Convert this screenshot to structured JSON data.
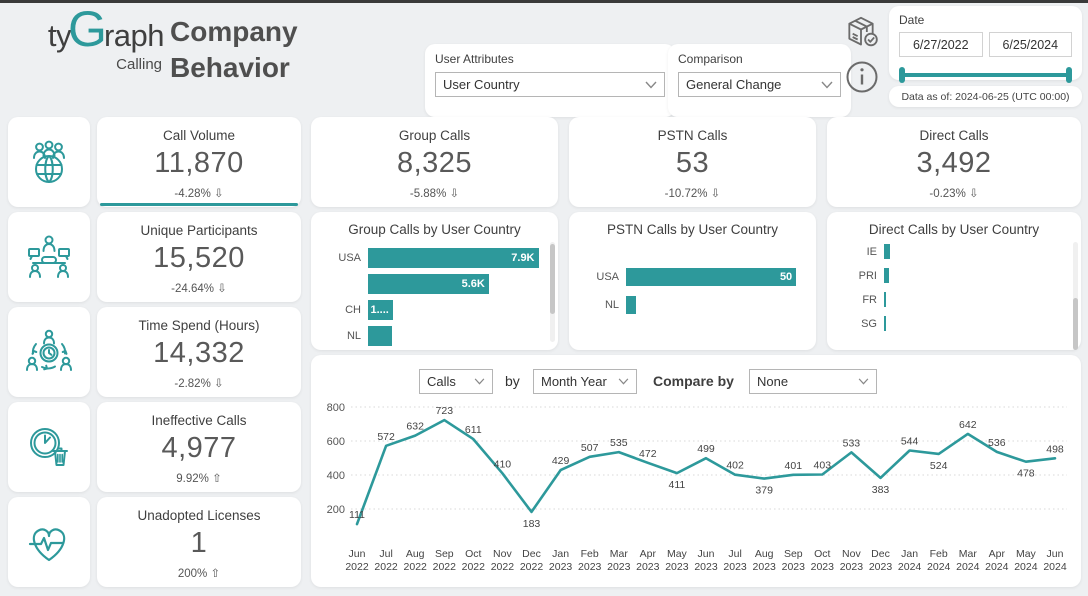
{
  "colors": {
    "teal": "#2d999b",
    "page_bg": "#eef0f2",
    "card_bg": "#ffffff",
    "top_border": "#3a3a3a",
    "grid_dotted": "#d8d8d8",
    "label_text": "#444444",
    "axis_text": "#555555"
  },
  "header": {
    "logo": {
      "prefix": "ty",
      "g": "G",
      "suffix": "raph",
      "subtitle": "Calling"
    },
    "title": {
      "line1": "Company",
      "line2": "Behavior"
    },
    "filters": {
      "user_attributes": {
        "label": "User Attributes",
        "value": "User Country"
      },
      "comparison": {
        "label": "Comparison",
        "value": "General Change"
      }
    },
    "date_slicer": {
      "label": "Date",
      "start": "6/27/2022",
      "end": "6/25/2024"
    },
    "data_as_of": "Data as of: 2024-06-25 (UTC 00:00)"
  },
  "kpis": [
    {
      "label": "Call Volume",
      "value": "11,870",
      "delta": "-4.28%",
      "direction": "down",
      "selected": true
    },
    {
      "label": "Group Calls",
      "value": "8,325",
      "delta": "-5.88%",
      "direction": "down",
      "selected": false
    },
    {
      "label": "PSTN Calls",
      "value": "53",
      "delta": "-10.72%",
      "direction": "down",
      "selected": false
    },
    {
      "label": "Direct Calls",
      "value": "3,492",
      "delta": "-0.23%",
      "direction": "down",
      "selected": false
    },
    {
      "label": "Unique Participants",
      "value": "15,520",
      "delta": "-24.64%",
      "direction": "down",
      "selected": false
    },
    {
      "label": "Time Spend (Hours)",
      "value": "14,332",
      "delta": "-2.82%",
      "direction": "down",
      "selected": false
    },
    {
      "label": "Ineffective Calls",
      "value": "4,977",
      "delta": "9.92%",
      "direction": "up",
      "selected": false
    },
    {
      "label": "Unadopted Licenses",
      "value": "1",
      "delta": "200%",
      "direction": "up",
      "selected": false
    }
  ],
  "chart_data": [
    {
      "type": "bar",
      "orientation": "horizontal",
      "title": "Group Calls by User Country",
      "categories": [
        "USA",
        "",
        "CH",
        "NL"
      ],
      "values": [
        7900,
        5600,
        1150,
        1100
      ],
      "value_labels": [
        "7.9K",
        "5.6K",
        "1....",
        ""
      ],
      "xlim": [
        0,
        8200
      ],
      "scrollbar": true,
      "values_estimated_for_unlabeled": true
    },
    {
      "type": "bar",
      "orientation": "horizontal",
      "title": "PSTN Calls by User Country",
      "categories": [
        "USA",
        "NL"
      ],
      "values": [
        50,
        3
      ],
      "value_labels": [
        "50",
        ""
      ],
      "xlim": [
        0,
        52
      ],
      "scrollbar": false,
      "values_estimated_for_unlabeled": true
    },
    {
      "type": "bar",
      "orientation": "horizontal",
      "title": "Direct Calls by User Country",
      "categories": [
        "IE",
        "PRI",
        "FR",
        "SG"
      ],
      "values": [
        55,
        52,
        18,
        16
      ],
      "value_labels": [
        "",
        "",
        "",
        ""
      ],
      "xlim": [
        0,
        1800
      ],
      "scrollbar": true,
      "values_estimated_for_unlabeled": true
    },
    {
      "type": "line",
      "controls": {
        "measure": "Calls",
        "by": "by",
        "bucket": "Month Year",
        "compare_label": "Compare by",
        "compare": "None"
      },
      "x": [
        "Jun 2022",
        "Jul 2022",
        "Aug 2022",
        "Sep 2022",
        "Oct 2022",
        "Nov 2022",
        "Dec 2022",
        "Jan 2023",
        "Feb 2023",
        "Mar 2023",
        "Apr 2023",
        "May 2023",
        "Jun 2023",
        "Jul 2023",
        "Aug 2023",
        "Sep 2023",
        "Oct 2023",
        "Nov 2023",
        "Dec 2023",
        "Jan 2024",
        "Feb 2024",
        "Mar 2024",
        "Apr 2024",
        "May 2024",
        "Jun 2024"
      ],
      "values": [
        111,
        572,
        632,
        723,
        611,
        410,
        183,
        429,
        507,
        535,
        472,
        411,
        499,
        402,
        379,
        401,
        403,
        533,
        383,
        544,
        524,
        642,
        536,
        478,
        498
      ],
      "ylim": [
        0,
        800
      ],
      "yticks": [
        200,
        400,
        600,
        800
      ],
      "grid": "dotted",
      "legend": "none"
    }
  ]
}
